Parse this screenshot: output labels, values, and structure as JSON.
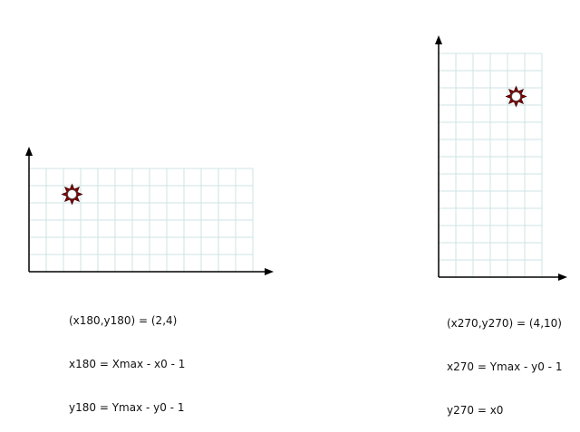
{
  "colors": {
    "grid": "#cfe3e3",
    "axis": "#000000",
    "marker_outer": "#8b0000",
    "marker_inner": "#ffffff"
  },
  "marker_icon": "sun-burst-icon",
  "left_panel": {
    "caption": {
      "line1": "(x180,y180) = (2,4)",
      "line2": "x180 = Xmax - x0 - 1",
      "line3": "y180 = Ymax - y0 - 1"
    },
    "grid_cols": 13,
    "grid_rows": 6,
    "point": [
      2,
      4
    ]
  },
  "right_panel": {
    "caption": {
      "line1": "(x270,y270) = (4,10)",
      "line2": "x270 = Ymax - y0 - 1",
      "line3": "y270 = x0"
    },
    "grid_cols": 6,
    "grid_rows": 13,
    "point": [
      4,
      10
    ]
  }
}
